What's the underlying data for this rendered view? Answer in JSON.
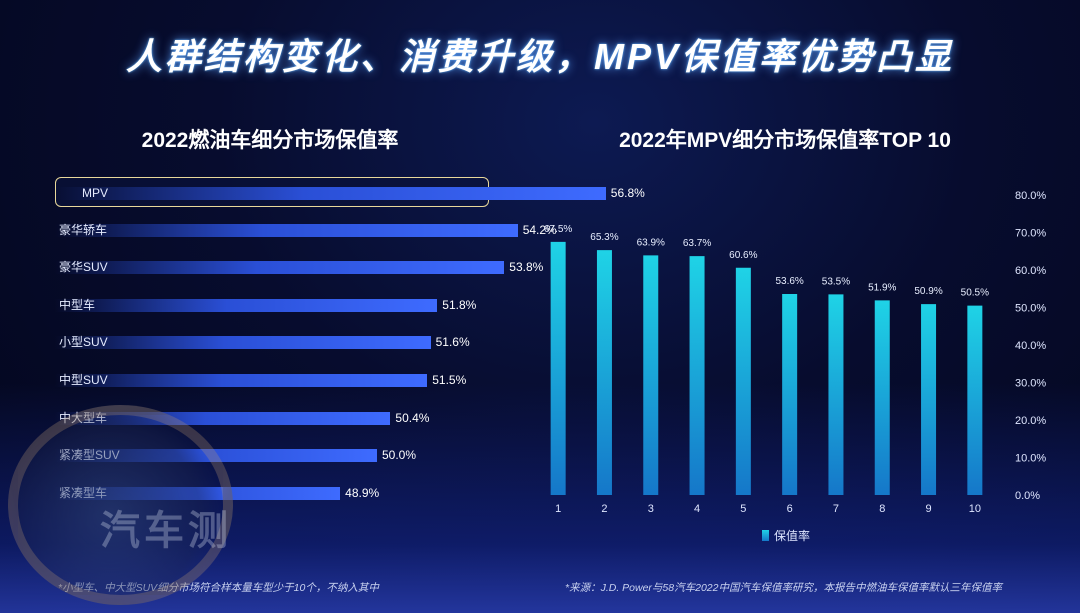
{
  "page": {
    "title": "人群结构变化、消费升级，MPV保值率优势凸显"
  },
  "colors": {
    "background": "#070c2e",
    "hbar": "#3e6bff",
    "vbar_top": "#1fd3e6",
    "vbar_bottom": "#1577c9",
    "highlight_border": "#e8d89a"
  },
  "chart_data": [
    {
      "type": "bar",
      "orientation": "horizontal",
      "title": "2022燃油车细分市场保值率",
      "categories": [
        "MPV",
        "豪华轿车",
        "豪华SUV",
        "中型车",
        "小型SUV",
        "中型SUV",
        "中大型车",
        "紧凑型SUV",
        "紧凑型车"
      ],
      "values": [
        56.8,
        54.2,
        53.8,
        51.8,
        51.6,
        51.5,
        50.4,
        50.0,
        48.9
      ],
      "labels": [
        "56.8%",
        "54.2%",
        "53.8%",
        "51.8%",
        "51.6%",
        "51.5%",
        "50.4%",
        "50.0%",
        "48.9%"
      ],
      "highlighted": "MPV",
      "footnote": "*小型车、中大型SUV细分市场符合样本量车型少于10个，不纳入其中"
    },
    {
      "type": "bar",
      "orientation": "vertical",
      "title": "2022年MPV细分市场保值率TOP 10",
      "categories": [
        "1",
        "2",
        "3",
        "4",
        "5",
        "6",
        "7",
        "8",
        "9",
        "10"
      ],
      "series": [
        {
          "name": "保值率",
          "values": [
            67.5,
            65.3,
            63.9,
            63.7,
            60.6,
            53.6,
            53.5,
            51.9,
            50.9,
            50.5
          ],
          "labels": [
            "67.5%",
            "65.3%",
            "63.9%",
            "63.7%",
            "60.6%",
            "53.6%",
            "53.5%",
            "51.9%",
            "50.9%",
            "50.5%"
          ]
        }
      ],
      "ylim": [
        0,
        80
      ],
      "yticks": [
        "0.0%",
        "10.0%",
        "20.0%",
        "30.0%",
        "40.0%",
        "50.0%",
        "60.0%",
        "70.0%",
        "80.0%"
      ],
      "yaxis_position": "right",
      "legend": "bottom",
      "footnote": "*来源：J.D. Power与58汽车2022中国汽车保值率研究，本报告中燃油车保值率默认三年保值率"
    }
  ],
  "watermark": {
    "text": "汽车测"
  }
}
